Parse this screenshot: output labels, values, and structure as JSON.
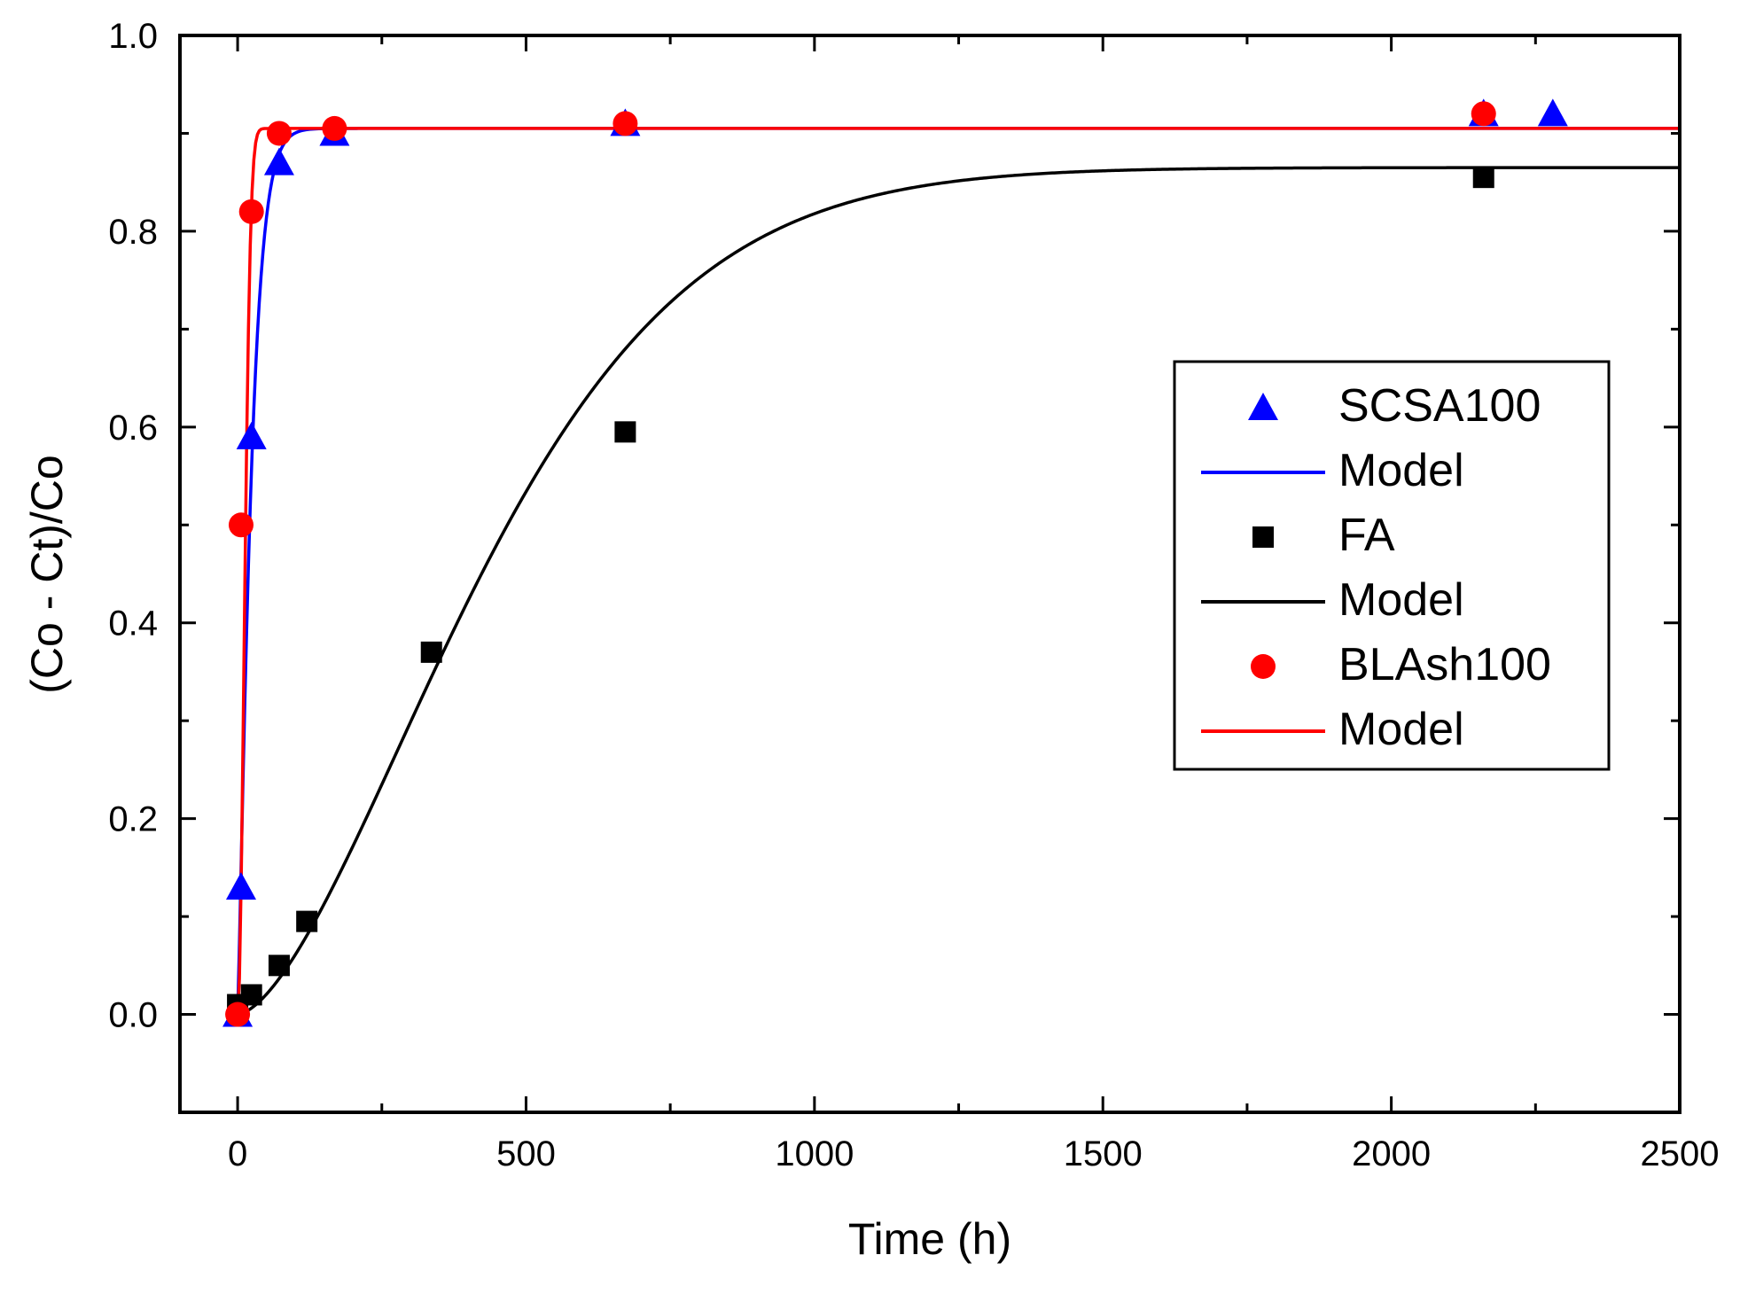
{
  "chart_data": {
    "type": "scatter",
    "xlabel": "Time (h)",
    "ylabel": "(Co - Ct)/Co",
    "xlim": [
      -100,
      2500
    ],
    "ylim": [
      -0.1,
      1.0
    ],
    "xticks": [
      0,
      500,
      1000,
      1500,
      2000,
      2500
    ],
    "yticks": [
      0.0,
      0.2,
      0.4,
      0.6,
      0.8,
      1.0
    ],
    "xtick_labels": [
      "0",
      "500",
      "1000",
      "1500",
      "2000",
      "2500"
    ],
    "ytick_labels": [
      "0.0",
      "0.2",
      "0.4",
      "0.6",
      "0.8",
      "1.0"
    ],
    "legend_position": "center-right",
    "series": [
      {
        "name": "SCSA100",
        "kind": "points",
        "marker": "triangle",
        "color": "#0000ff",
        "x": [
          0,
          6,
          24,
          72,
          168,
          672,
          2160,
          2280
        ],
        "y": [
          0.0,
          0.13,
          0.59,
          0.87,
          0.9,
          0.91,
          0.92,
          0.92
        ]
      },
      {
        "name": "Model",
        "kind": "line",
        "color": "#0000ff",
        "model": {
          "a": 0.905,
          "k": 0.04,
          "n": 1.2
        },
        "x_range": [
          0,
          2500
        ]
      },
      {
        "name": "FA",
        "kind": "points",
        "marker": "square",
        "color": "#000000",
        "x": [
          0,
          24,
          72,
          120,
          336,
          672,
          2160
        ],
        "y": [
          0.01,
          0.02,
          0.05,
          0.095,
          0.37,
          0.595,
          0.855
        ]
      },
      {
        "name": "Model",
        "kind": "line",
        "color": "#000000",
        "model": {
          "a": 0.865,
          "k": 0.00195,
          "n": 1.6
        },
        "x_range": [
          0,
          2500
        ]
      },
      {
        "name": "BLAsh100",
        "kind": "points",
        "marker": "circle",
        "color": "#ff0000",
        "x": [
          0,
          6,
          24,
          72,
          168,
          672,
          2160
        ],
        "y": [
          0.0,
          0.5,
          0.82,
          0.9,
          0.905,
          0.91,
          0.92
        ]
      },
      {
        "name": "Model",
        "kind": "line",
        "color": "#ff0000",
        "model": {
          "a": 0.905,
          "k": 0.065,
          "n": 2.0
        },
        "x_range": [
          0,
          2500
        ]
      }
    ]
  }
}
